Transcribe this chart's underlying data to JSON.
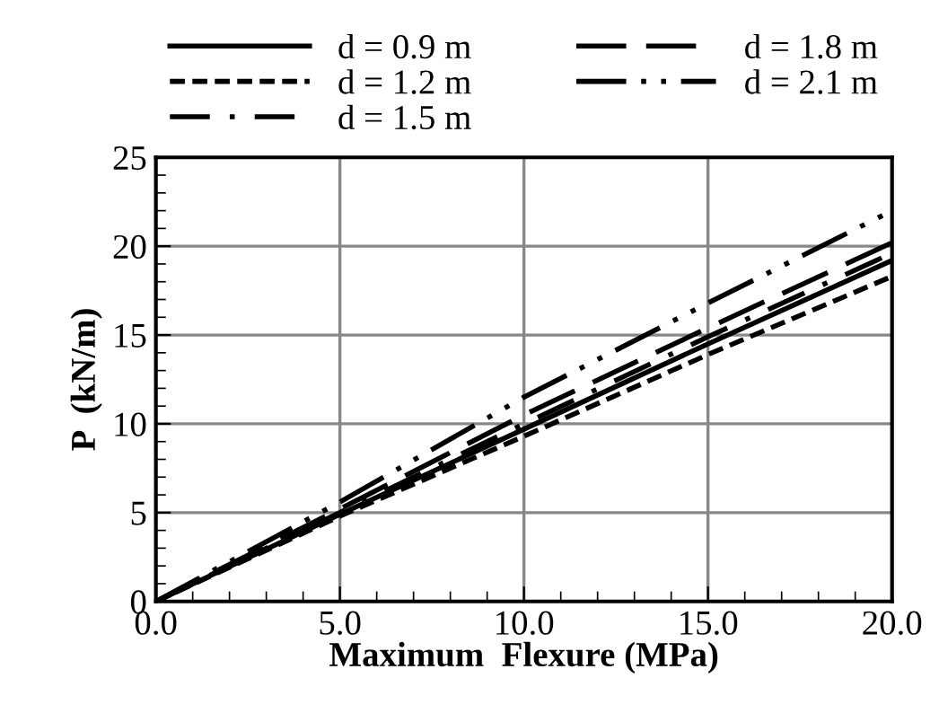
{
  "chart_data": {
    "type": "line",
    "xlabel": "Maximum  Flexure (MPa)",
    "ylabel": "P  (kN/m)",
    "x": [
      0,
      5,
      10,
      15,
      20
    ],
    "series": [
      {
        "name": "d = 0.9 m",
        "color": "#000000",
        "line_style": "solid",
        "values": [
          0,
          4.9,
          9.7,
          14.5,
          19.2
        ]
      },
      {
        "name": "d = 1.2 m",
        "color": "#000000",
        "line_style": "dashed",
        "values": [
          0,
          4.8,
          9.3,
          13.9,
          18.3
        ]
      },
      {
        "name": "d = 1.5 m",
        "color": "#000000",
        "line_style": "dashdot",
        "values": [
          0,
          5.0,
          10.0,
          14.9,
          19.6
        ]
      },
      {
        "name": "d = 1.8 m",
        "color": "#000000",
        "line_style": "longdash",
        "values": [
          0,
          5.2,
          10.5,
          15.4,
          20.2
        ]
      },
      {
        "name": "d = 2.1 m",
        "color": "#000000",
        "line_style": "dashdotdot",
        "values": [
          0,
          5.6,
          11.5,
          16.8,
          22.0
        ]
      }
    ],
    "xlim": [
      0,
      20
    ],
    "ylim": [
      0,
      25
    ],
    "xticks": [
      {
        "value": 0,
        "label": "0.0"
      },
      {
        "value": 5,
        "label": "5.0"
      },
      {
        "value": 10,
        "label": "10.0"
      },
      {
        "value": 15,
        "label": "15.0"
      },
      {
        "value": 20,
        "label": "20.0"
      }
    ],
    "yticks": [
      0,
      5,
      10,
      15,
      20,
      25
    ],
    "grid": true,
    "legend": "top",
    "marker": "none"
  }
}
